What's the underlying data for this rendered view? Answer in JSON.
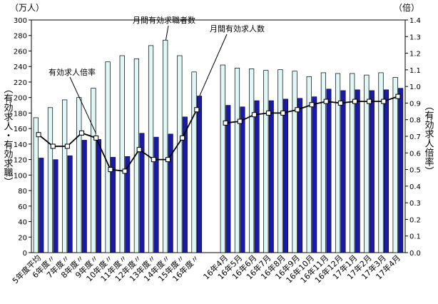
{
  "chart_data": {
    "type": "bar",
    "title": "",
    "y_left_unit": "（万人）",
    "y_right_unit": "（倍）",
    "ylabel_left": "（有効求人・有効求職）",
    "ylabel_right": "（有効求人倍率）",
    "ylim_left": [
      0,
      300
    ],
    "yticks_left": [
      0,
      20,
      40,
      60,
      80,
      100,
      120,
      140,
      160,
      180,
      200,
      220,
      240,
      260,
      280,
      300
    ],
    "ylim_right": [
      0,
      1.4
    ],
    "yticks_right": [
      "0.0",
      "0.1",
      "0.2",
      "0.3",
      "0.4",
      "0.5",
      "0.6",
      "0.7",
      "0.8",
      "0.9",
      "1.0",
      "1.1",
      "1.2",
      "1.3",
      "1.4"
    ],
    "categories": [
      "5年度平均",
      "6年度〃",
      "7年度〃",
      "8年度〃",
      "9年度〃",
      "10年度〃",
      "11年度〃",
      "12年度〃",
      "13年度〃",
      "14年度〃",
      "15年度〃",
      "16年度〃",
      "",
      "16年4月",
      "16年5月",
      "16年6月",
      "16年7月",
      "16年8月",
      "16年9月",
      "16年10月",
      "16年11月",
      "16年12月",
      "17年1月",
      "17年2月",
      "17年3月",
      "17年4月"
    ],
    "series": [
      {
        "name": "月間有効求職者数",
        "color": "#dff7f7",
        "values": [
          174,
          187,
          197,
          200,
          212,
          246,
          254,
          250,
          267,
          274,
          254,
          233,
          null,
          242,
          238,
          237,
          235,
          236,
          234,
          227,
          232,
          231,
          231,
          229,
          232,
          226
        ]
      },
      {
        "name": "月間有効求人数",
        "color": "#1a1aa6",
        "values": [
          122,
          120,
          125,
          145,
          146,
          123,
          124,
          154,
          149,
          153,
          175,
          202,
          null,
          190,
          188,
          196,
          196,
          198,
          199,
          201,
          211,
          209,
          210,
          209,
          210,
          212
        ]
      },
      {
        "name": "有効求人倍率",
        "axis": "right",
        "color": "#000000",
        "values": [
          0.71,
          0.64,
          0.64,
          0.72,
          0.69,
          0.5,
          0.49,
          0.62,
          0.56,
          0.56,
          0.69,
          0.86,
          null,
          0.78,
          0.79,
          0.83,
          0.84,
          0.84,
          0.86,
          0.89,
          0.91,
          0.9,
          0.91,
          0.91,
          0.91,
          0.94
        ]
      }
    ],
    "annotations": [
      {
        "text": "有効求人倍率",
        "series": "有効求人倍率"
      },
      {
        "text": "月間有効求職者数",
        "series": "月間有効求職者数"
      },
      {
        "text": "月間有効求人数",
        "series": "月間有効求人数"
      }
    ]
  }
}
